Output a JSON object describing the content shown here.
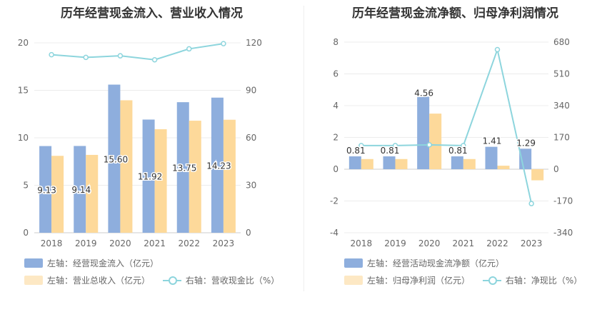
{
  "chart_data": [
    {
      "type": "bar",
      "title": "历年经营现金流入、营业收入情况",
      "categories": [
        "2018",
        "2019",
        "2020",
        "2021",
        "2022",
        "2023"
      ],
      "series": [
        {
          "name": "左轴：经营现金流入（亿元）",
          "axis": "left",
          "kind": "bar",
          "color": "#8eaedd",
          "values": [
            9.13,
            9.14,
            15.6,
            11.92,
            13.75,
            14.23
          ],
          "labels": [
            "9.13",
            "9.14",
            "15.60",
            "11.92",
            "13.75",
            "14.23"
          ]
        },
        {
          "name": "左轴：营业总收入（亿元）",
          "axis": "left",
          "kind": "bar",
          "color": "#fdd99a",
          "values": [
            8.1,
            8.2,
            13.95,
            10.9,
            11.8,
            11.9
          ]
        },
        {
          "name": "右轴：营收现金比（%）",
          "axis": "right",
          "kind": "line",
          "color": "#8dd5dd",
          "values": [
            112.5,
            110.8,
            111.8,
            109.3,
            116.2,
            119.5
          ]
        }
      ],
      "ylim_left": [
        0,
        20
      ],
      "yticks_left": [
        0,
        5,
        10,
        15,
        20
      ],
      "ylim_right": [
        0,
        120
      ],
      "yticks_right": [
        0,
        30,
        60,
        90,
        120
      ]
    },
    {
      "type": "bar",
      "title": "历年经营现金流净额、归母净利润情况",
      "categories": [
        "2018",
        "2019",
        "2020",
        "2021",
        "2022",
        "2023"
      ],
      "series": [
        {
          "name": "左轴：经营活动现金流净额（亿元）",
          "axis": "left",
          "kind": "bar",
          "color": "#8eaedd",
          "values": [
            0.81,
            0.81,
            4.56,
            0.81,
            1.41,
            1.29
          ],
          "labels": [
            "0.81",
            "0.81",
            "4.56",
            "0.81",
            "1.41",
            "1.29"
          ]
        },
        {
          "name": "左轴：归母净利润（亿元）",
          "axis": "left",
          "kind": "bar",
          "color": "#fdd99a",
          "values": [
            0.64,
            0.64,
            3.5,
            0.64,
            0.22,
            -0.7
          ]
        },
        {
          "name": "右轴：净现比（%）",
          "axis": "right",
          "kind": "line",
          "color": "#8dd5dd",
          "values": [
            126.5,
            126.5,
            130.3,
            126.5,
            640,
            -184
          ]
        }
      ],
      "ylim_left": [
        -4,
        8
      ],
      "yticks_left": [
        -4,
        -2,
        0,
        2,
        4,
        6,
        8
      ],
      "ylim_right": [
        -340,
        680
      ],
      "yticks_right": [
        -340,
        -170,
        0,
        170,
        340,
        510,
        680
      ]
    }
  ]
}
